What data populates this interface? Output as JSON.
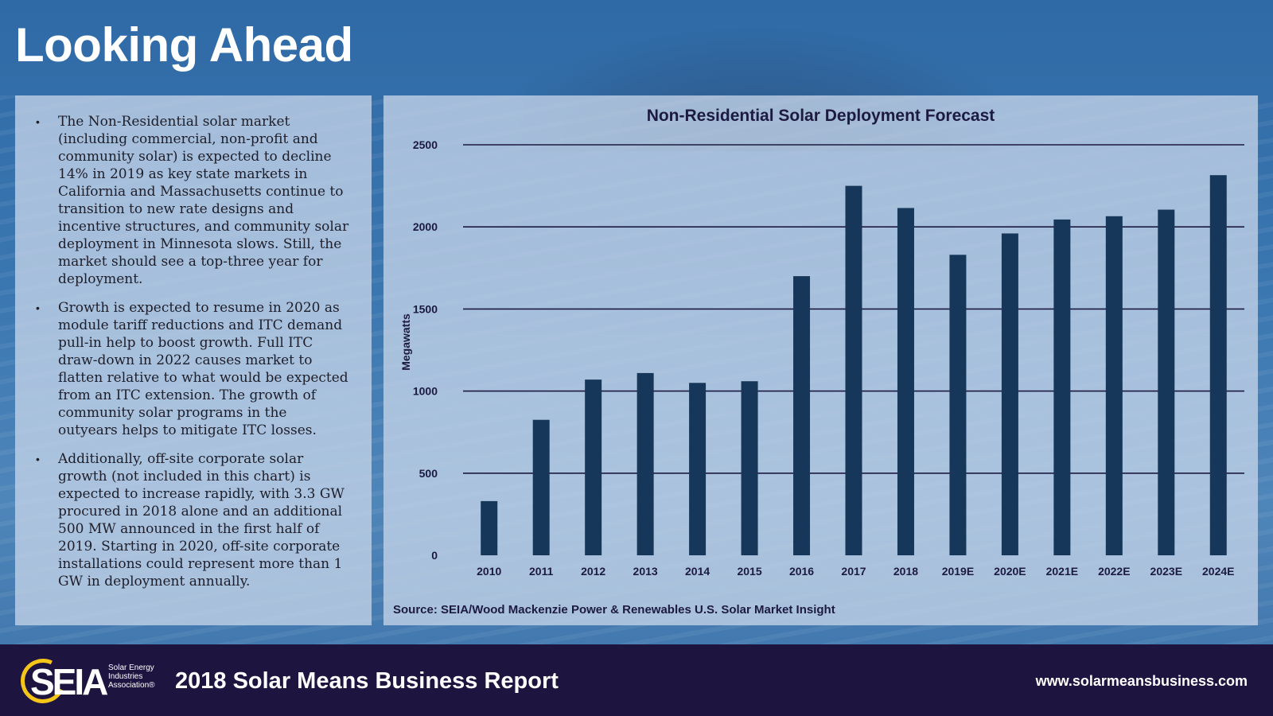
{
  "slide": {
    "title": "Looking Ahead"
  },
  "bullets": [
    "The Non-Residential solar market (including commercial, non-profit and community solar) is expected to decline 14% in 2019 as key state markets in California and Massachusetts continue to transition to new rate designs and incentive structures, and community solar deployment in Minnesota slows. Still, the market should see a top-three year for deployment.",
    "Growth is expected to resume in 2020 as module tariff reductions and ITC demand pull-in help to boost growth. Full ITC draw-down in 2022 causes market to flatten relative to what would be expected from an ITC extension. The growth of community solar programs in the outyears helps to mitigate ITC losses.",
    "Additionally, off-site corporate solar growth (not included in this chart) is expected to increase rapidly, with 3.3 GW procured in 2018 alone and an additional 500 MW announced in the first half of 2019. Starting in 2020, off-site corporate installations could represent more than 1 GW in deployment annually."
  ],
  "bullet_symbol": "•",
  "chart_data": {
    "type": "bar",
    "title": "Non-Residential Solar Deployment Forecast",
    "xlabel": "",
    "ylabel": "Megawatts",
    "categories": [
      "2010",
      "2011",
      "2012",
      "2013",
      "2014",
      "2015",
      "2016",
      "2017",
      "2018",
      "2019E",
      "2020E",
      "2021E",
      "2022E",
      "2023E",
      "2024E"
    ],
    "values": [
      330,
      825,
      1070,
      1110,
      1050,
      1060,
      1700,
      2250,
      2115,
      1830,
      1960,
      2045,
      2065,
      2105,
      2315
    ],
    "ylim": [
      0,
      2500
    ],
    "yticks": [
      0,
      500,
      1000,
      1500,
      2000,
      2500
    ],
    "grid": true,
    "bar_color": "#163759",
    "grid_color": "#1c1a40",
    "source": "Source: SEIA/Wood Mackenzie Power & Renewables U.S. Solar Market Insight"
  },
  "footer": {
    "logo_text": "SEIA",
    "logo_subtitle": "Solar Energy Industries Association®",
    "report_title": "2018 Solar Means Business Report",
    "url": "www.solarmeansbusiness.com"
  }
}
